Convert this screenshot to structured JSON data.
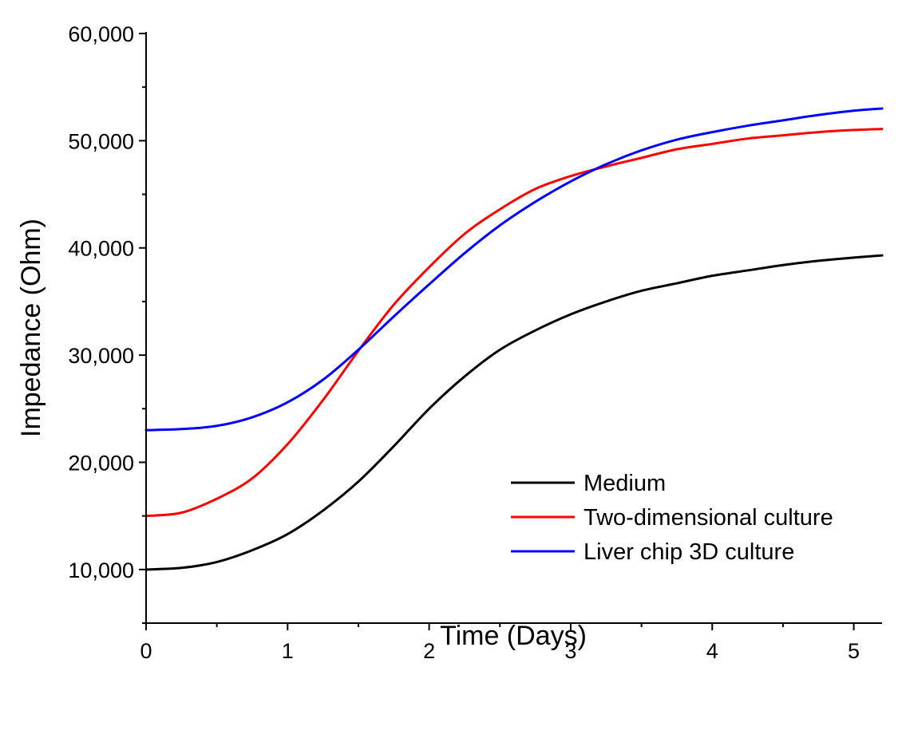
{
  "chart_data": {
    "type": "line",
    "title": "",
    "xlabel": "Time (Days)",
    "ylabel": "Impedance (Ohm)",
    "xlim": [
      0,
      5.2
    ],
    "ylim": [
      5000,
      60000
    ],
    "xticks": [
      0,
      1,
      2,
      3,
      4,
      5
    ],
    "xtick_labels": [
      "0",
      "1",
      "2",
      "3",
      "4",
      "5"
    ],
    "xminor_ticks": [
      0.5,
      1.5,
      2.5,
      3.5,
      4.5
    ],
    "yticks": [
      10000,
      20000,
      30000,
      40000,
      50000,
      60000
    ],
    "ytick_labels": [
      "10,000",
      "20,000",
      "30,000",
      "40,000",
      "50,000",
      "60,000"
    ],
    "yminor_ticks": [
      5000,
      15000,
      25000,
      35000,
      45000,
      55000
    ],
    "grid": false,
    "legend_position": "lower-right",
    "series": [
      {
        "name": "Medium",
        "color": "#000000",
        "x": [
          0,
          0.25,
          0.5,
          0.75,
          1.0,
          1.25,
          1.5,
          1.75,
          2.0,
          2.25,
          2.5,
          2.75,
          3.0,
          3.25,
          3.5,
          3.75,
          4.0,
          4.25,
          4.5,
          4.75,
          5.0,
          5.2
        ],
        "y": [
          10000,
          10150,
          10700,
          11800,
          13300,
          15500,
          18200,
          21500,
          25000,
          28000,
          30500,
          32300,
          33800,
          35000,
          36000,
          36700,
          37400,
          37900,
          38400,
          38800,
          39100,
          39300
        ]
      },
      {
        "name": "Two-dimensional culture",
        "color": "#ff0000",
        "x": [
          0,
          0.25,
          0.5,
          0.75,
          1.0,
          1.25,
          1.5,
          1.75,
          2.0,
          2.25,
          2.5,
          2.75,
          3.0,
          3.25,
          3.5,
          3.75,
          4.0,
          4.25,
          4.5,
          4.75,
          5.0,
          5.2
        ],
        "y": [
          15000,
          15300,
          16600,
          18500,
          21700,
          25800,
          30400,
          34700,
          38200,
          41300,
          43600,
          45500,
          46700,
          47600,
          48400,
          49200,
          49700,
          50200,
          50500,
          50800,
          51000,
          51100
        ]
      },
      {
        "name": "Liver chip 3D culture",
        "color": "#0000ff",
        "x": [
          0,
          0.25,
          0.5,
          0.75,
          1.0,
          1.25,
          1.5,
          1.75,
          2.0,
          2.25,
          2.5,
          2.75,
          3.0,
          3.25,
          3.5,
          3.75,
          4.0,
          4.25,
          4.5,
          4.75,
          5.0,
          5.2
        ],
        "y": [
          23000,
          23100,
          23400,
          24200,
          25600,
          27700,
          30500,
          33600,
          36600,
          39500,
          42100,
          44300,
          46200,
          47800,
          49100,
          50100,
          50800,
          51400,
          51900,
          52400,
          52800,
          53000
        ]
      }
    ]
  }
}
